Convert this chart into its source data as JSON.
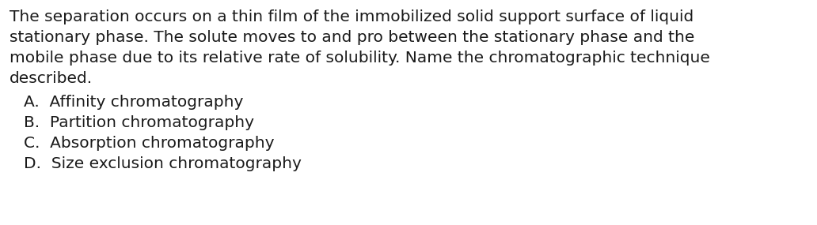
{
  "background_color": "#ffffff",
  "text_color": "#1a1a1a",
  "paragraph_lines": [
    "The separation occurs on a thin film of the immobilized solid support surface of liquid",
    "stationary phase. The solute moves to and pro between the stationary phase and the",
    "mobile phase due to its relative rate of solubility. Name the chromatographic technique",
    "described."
  ],
  "options": [
    "A.  Affinity chromatography",
    "B.  Partition chromatography",
    "C.  Absorption chromatography",
    "D.  Size exclusion chromatography"
  ],
  "font_size": 14.5,
  "font_family": "DejaVu Sans",
  "fig_width": 10.32,
  "fig_height": 2.85,
  "dpi": 100
}
